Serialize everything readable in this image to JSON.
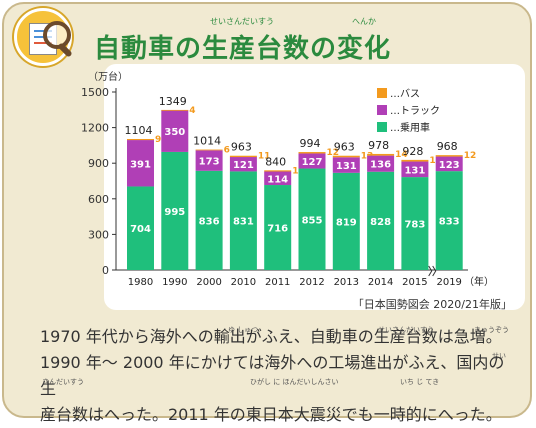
{
  "title": "自動車の生産台数の変化",
  "title_ruby": [
    {
      "text": "せいさんだいすう",
      "anchor": "生産台数"
    },
    {
      "text": "へんか",
      "anchor": "変化"
    }
  ],
  "icon": "magnifier-chart-icon",
  "chart_data": {
    "type": "bar",
    "stacked": true,
    "categories": [
      "1980",
      "1990",
      "2000",
      "2010",
      "2011",
      "2012",
      "2013",
      "2014",
      "2015",
      "2019"
    ],
    "series": [
      {
        "name": "…乗用車",
        "color": "#1fbf7c",
        "values": [
          704,
          995,
          836,
          831,
          716,
          855,
          819,
          828,
          783,
          833
        ]
      },
      {
        "name": "…トラック",
        "color": "#b03fb6",
        "values": [
          391,
          350,
          173,
          121,
          114,
          127,
          131,
          136,
          131,
          123
        ]
      },
      {
        "name": "…バス",
        "color": "#f39a1e",
        "values": [
          9,
          4,
          6,
          11,
          10,
          12,
          13,
          14,
          14,
          12
        ]
      }
    ],
    "totals": [
      1104,
      1349,
      1014,
      963,
      840,
      994,
      963,
      978,
      928,
      968
    ],
    "yunit": "（万台）",
    "xunit": "（年）",
    "ylim": [
      0,
      1500
    ],
    "yticks": [
      0,
      300,
      600,
      900,
      1200,
      1500
    ],
    "axis_break_between": [
      "2015",
      "2019"
    ],
    "legend_position": "top-right",
    "grid": false,
    "source": "「日本国勢図会 2020/21年版」"
  },
  "description": {
    "line1": "1970 年代から海外への輸出がふえ、自動車の生産台数は急増。",
    "line2": "1990 年～ 2000 年にかけては海外への工場進出がふえ、国内の生",
    "line3": "産台数はへった。2011 年の東日本大震災でも一時的にへった。"
  },
  "ruby": {
    "yushutsu": "ゆ しゅつ",
    "seisandaisu1": "せいさんだいすう",
    "kyuzo": "きゅうぞう",
    "sei": "せい",
    "sandaisu": "さんだいすう",
    "higashinihon": "ひがし に ほんだいしんさい",
    "ichijiteki": "いち じ てき"
  }
}
